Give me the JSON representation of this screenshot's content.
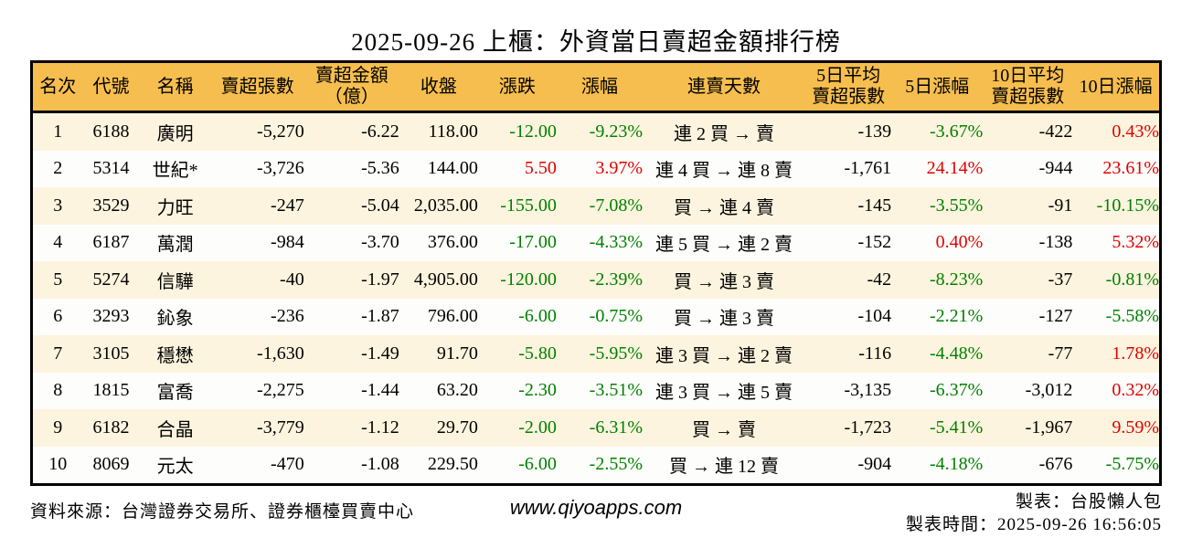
{
  "title": "2025-09-26 上櫃：外資當日賣超金額排行榜",
  "colors": {
    "up_red": "#E00000",
    "down_green": "#008000",
    "header_bg": "#F6BE4E",
    "row_odd_bg": "#FCF4DE",
    "row_even_bg": "#FDFDFB"
  },
  "table": {
    "columns": [
      {
        "key": "rank",
        "label": "名次"
      },
      {
        "key": "code",
        "label": "代號"
      },
      {
        "key": "name",
        "label": "名稱"
      },
      {
        "key": "sell_shares",
        "label": "賣超張數"
      },
      {
        "key": "sell_amount",
        "label": "賣超金額\n（億）"
      },
      {
        "key": "close",
        "label": "收盤"
      },
      {
        "key": "change",
        "label": "漲跌"
      },
      {
        "key": "change_pct",
        "label": "漲幅"
      },
      {
        "key": "streak",
        "label": "連賣天數"
      },
      {
        "key": "avg5",
        "label": "5日平均\n賣超張數"
      },
      {
        "key": "pct5",
        "label": "5日漲幅"
      },
      {
        "key": "avg10",
        "label": "10日平均\n賣超張數"
      },
      {
        "key": "pct10",
        "label": "10日漲幅"
      }
    ],
    "rows": [
      {
        "rank": "1",
        "code": "6188",
        "name": "廣明",
        "sell_shares": "-5,270",
        "sell_amount": "-6.22",
        "close": "118.00",
        "change": "-12.00",
        "change_pct": "-9.23%",
        "streak": "連 2 買 → 賣",
        "avg5": "-139",
        "pct5": "-3.67%",
        "avg10": "-422",
        "pct10": "0.43%"
      },
      {
        "rank": "2",
        "code": "5314",
        "name": "世紀*",
        "sell_shares": "-3,726",
        "sell_amount": "-5.36",
        "close": "144.00",
        "change": "5.50",
        "change_pct": "3.97%",
        "streak": "連 4 買 → 連 8 賣",
        "avg5": "-1,761",
        "pct5": "24.14%",
        "avg10": "-944",
        "pct10": "23.61%"
      },
      {
        "rank": "3",
        "code": "3529",
        "name": "力旺",
        "sell_shares": "-247",
        "sell_amount": "-5.04",
        "close": "2,035.00",
        "change": "-155.00",
        "change_pct": "-7.08%",
        "streak": "買 → 連 4 賣",
        "avg5": "-145",
        "pct5": "-3.55%",
        "avg10": "-91",
        "pct10": "-10.15%"
      },
      {
        "rank": "4",
        "code": "6187",
        "name": "萬潤",
        "sell_shares": "-984",
        "sell_amount": "-3.70",
        "close": "376.00",
        "change": "-17.00",
        "change_pct": "-4.33%",
        "streak": "連 5 買 → 連 2 賣",
        "avg5": "-152",
        "pct5": "0.40%",
        "avg10": "-138",
        "pct10": "5.32%"
      },
      {
        "rank": "5",
        "code": "5274",
        "name": "信驊",
        "sell_shares": "-40",
        "sell_amount": "-1.97",
        "close": "4,905.00",
        "change": "-120.00",
        "change_pct": "-2.39%",
        "streak": "買 → 連 3 賣",
        "avg5": "-42",
        "pct5": "-8.23%",
        "avg10": "-37",
        "pct10": "-0.81%"
      },
      {
        "rank": "6",
        "code": "3293",
        "name": "鈊象",
        "sell_shares": "-236",
        "sell_amount": "-1.87",
        "close": "796.00",
        "change": "-6.00",
        "change_pct": "-0.75%",
        "streak": "買 → 連 3 賣",
        "avg5": "-104",
        "pct5": "-2.21%",
        "avg10": "-127",
        "pct10": "-5.58%"
      },
      {
        "rank": "7",
        "code": "3105",
        "name": "穩懋",
        "sell_shares": "-1,630",
        "sell_amount": "-1.49",
        "close": "91.70",
        "change": "-5.80",
        "change_pct": "-5.95%",
        "streak": "連 3 買 → 連 2 賣",
        "avg5": "-116",
        "pct5": "-4.48%",
        "avg10": "-77",
        "pct10": "1.78%"
      },
      {
        "rank": "8",
        "code": "1815",
        "name": "富喬",
        "sell_shares": "-2,275",
        "sell_amount": "-1.44",
        "close": "63.20",
        "change": "-2.30",
        "change_pct": "-3.51%",
        "streak": "連 3 買 → 連 5 賣",
        "avg5": "-3,135",
        "pct5": "-6.37%",
        "avg10": "-3,012",
        "pct10": "0.32%"
      },
      {
        "rank": "9",
        "code": "6182",
        "name": "合晶",
        "sell_shares": "-3,779",
        "sell_amount": "-1.12",
        "close": "29.70",
        "change": "-2.00",
        "change_pct": "-6.31%",
        "streak": "買 → 賣",
        "avg5": "-1,723",
        "pct5": "-5.41%",
        "avg10": "-1,967",
        "pct10": "9.59%"
      },
      {
        "rank": "10",
        "code": "8069",
        "name": "元太",
        "sell_shares": "-470",
        "sell_amount": "-1.08",
        "close": "229.50",
        "change": "-6.00",
        "change_pct": "-2.55%",
        "streak": "買 → 連 12 賣",
        "avg5": "-904",
        "pct5": "-4.18%",
        "avg10": "-676",
        "pct10": "-5.75%"
      }
    ]
  },
  "footer": {
    "source": "資料來源：台灣證券交易所、證券櫃檯買賣中心",
    "website": "www.qiyoapps.com",
    "maker": "製表：台股懶人包",
    "generated_at": "製表時間：2025-09-26 16:56:05"
  }
}
